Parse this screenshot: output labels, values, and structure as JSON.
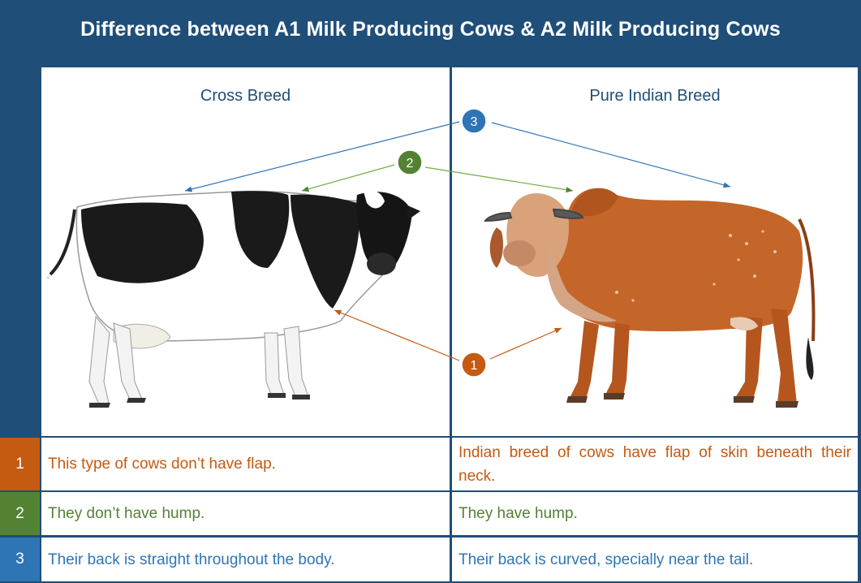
{
  "title": "Difference between A1 Milk Producing Cows & A2 Milk Producing Cows",
  "columns": {
    "left_heading": "Cross Breed",
    "right_heading": "Pure Indian Breed"
  },
  "markers": {
    "m1": "1",
    "m2": "2",
    "m3": "3"
  },
  "colors": {
    "background": "#1f4e79",
    "orange": "#c55a11",
    "green": "#548235",
    "blue": "#2e75b6"
  },
  "rows": [
    {
      "num": "1",
      "left": "This type of cows don’t have flap.",
      "right": "Indian breed of cows have flap of skin beneath their neck."
    },
    {
      "num": "2",
      "left": "They don’t have hump.",
      "right": "They have hump."
    },
    {
      "num": "3",
      "left": "Their back is straight throughout the body.",
      "right": "Their back is curved, specially near the tail."
    }
  ]
}
